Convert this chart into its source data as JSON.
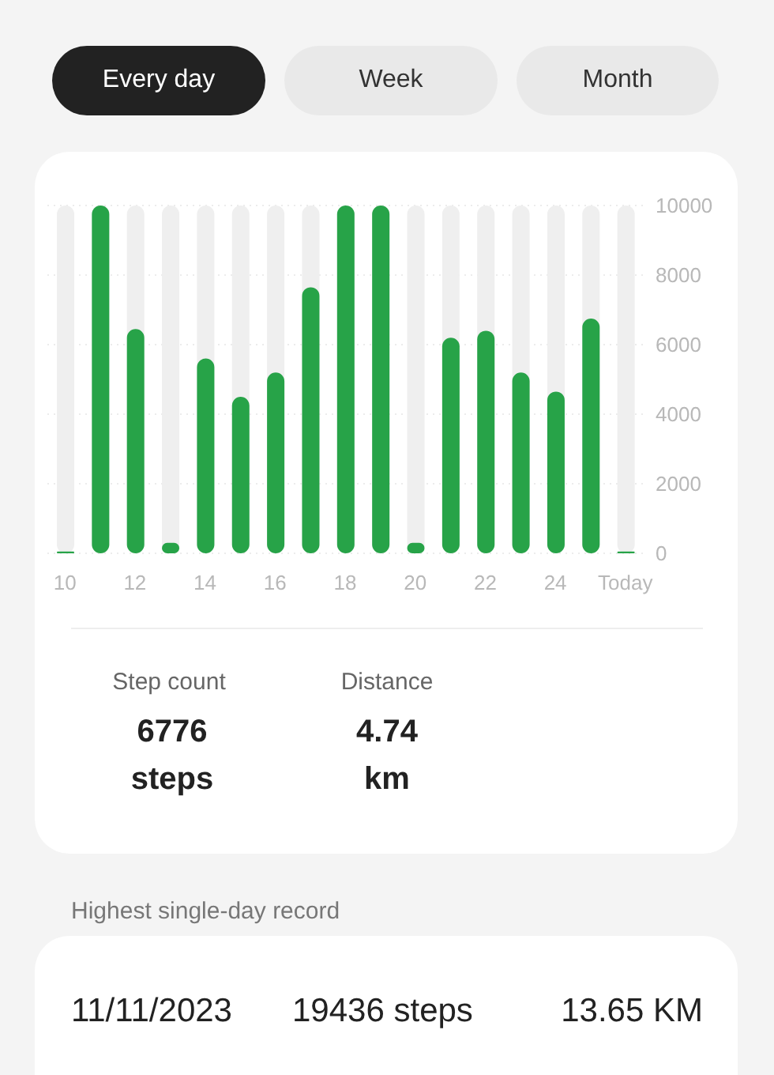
{
  "chart_data": {
    "type": "bar",
    "categories": [
      "10",
      null,
      "12",
      null,
      "14",
      null,
      "16",
      null,
      "18",
      null,
      "20",
      null,
      "22",
      null,
      "24",
      null,
      "Today"
    ],
    "values": [
      50,
      10000,
      6450,
      300,
      5600,
      4500,
      5200,
      7650,
      10000,
      10000,
      300,
      6200,
      6400,
      5200,
      4650,
      6750,
      50
    ],
    "color": "#27a348",
    "ylim": [
      0,
      10000
    ],
    "yticks": [
      0,
      2000,
      4000,
      6000,
      8000,
      10000
    ],
    "grid": "y",
    "annotations": [
      "Every day",
      "Week",
      "Month",
      "Step count",
      "6776 steps",
      "Distance",
      "4.74 km",
      "Highest single-day record",
      "11/11/2023",
      "19436 steps",
      "13.65 KM"
    ]
  }
}
